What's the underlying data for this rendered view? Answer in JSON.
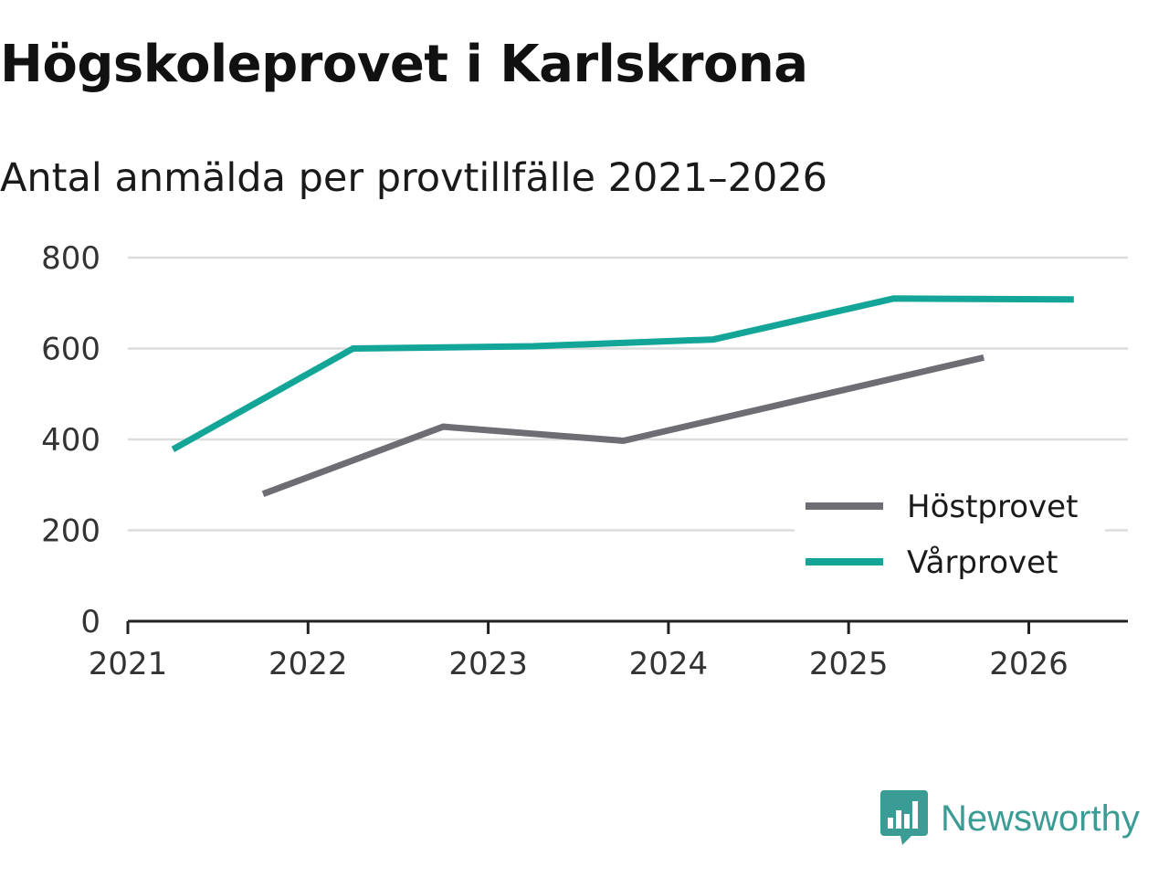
{
  "title": "Högskoleprovet i Karlskrona",
  "subtitle": "Antal anmälda per provtillfälle 2021–2026",
  "brand": {
    "name": "Newsworthy",
    "icon": "bar-chart-speech-bubble-icon",
    "color": "#3a9c94"
  },
  "chart_data": {
    "type": "line",
    "x_ticks": [
      "2021",
      "2022",
      "2023",
      "2024",
      "2025",
      "2026"
    ],
    "y_ticks": [
      "0",
      "200",
      "400",
      "600",
      "800"
    ],
    "ylim": [
      0,
      800
    ],
    "xlim": [
      2021,
      2026.55
    ],
    "grid": true,
    "legend_position": "bottom-right",
    "series": [
      {
        "name": "Höstprovet",
        "color": "#6d6d73",
        "points": [
          {
            "x": 2021.75,
            "y": 280
          },
          {
            "x": 2022.75,
            "y": 428
          },
          {
            "x": 2023.75,
            "y": 397
          },
          {
            "x": 2025.75,
            "y": 580
          }
        ]
      },
      {
        "name": "Vårprovet",
        "color": "#13a597",
        "points": [
          {
            "x": 2021.25,
            "y": 378
          },
          {
            "x": 2022.25,
            "y": 600
          },
          {
            "x": 2023.25,
            "y": 605
          },
          {
            "x": 2024.25,
            "y": 620
          },
          {
            "x": 2025.25,
            "y": 710
          },
          {
            "x": 2026.25,
            "y": 708
          }
        ]
      }
    ]
  }
}
